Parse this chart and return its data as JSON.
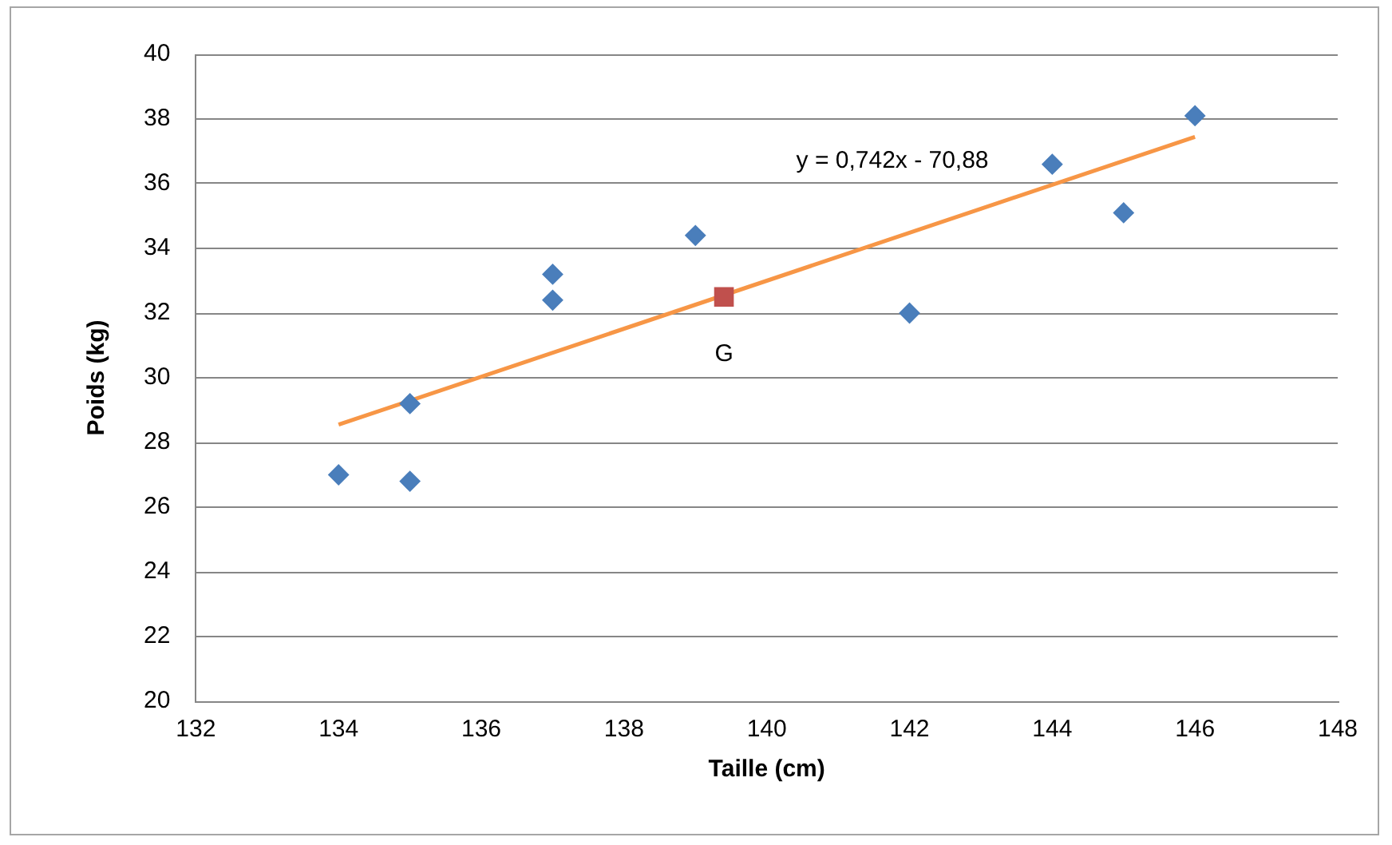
{
  "chart_data": {
    "type": "scatter",
    "xlabel": "Taille (cm)",
    "ylabel": "Poids (kg)",
    "xlim": [
      132,
      148
    ],
    "xticks": [
      132,
      134,
      136,
      138,
      140,
      142,
      144,
      146,
      148
    ],
    "ylim": [
      20,
      40
    ],
    "yticks": [
      20,
      22,
      24,
      26,
      28,
      30,
      32,
      34,
      36,
      38,
      40
    ],
    "grid": "y",
    "legend": false,
    "series": [
      {
        "type": "scatter",
        "color": "#4a7ebb",
        "marker": "diamond",
        "x": [
          134,
          135,
          135,
          137,
          137,
          139,
          142,
          144,
          145,
          146
        ],
        "values": [
          27.0,
          29.2,
          26.8,
          33.2,
          32.4,
          34.4,
          32.0,
          36.6,
          35.1,
          38.1
        ]
      },
      {
        "type": "line",
        "color": "#f79646",
        "marker": "none",
        "x": [
          134,
          146
        ],
        "values": [
          28.55,
          37.45
        ]
      },
      {
        "type": "scatter",
        "name": "G",
        "color": "#c0504d",
        "marker": "square",
        "x": [
          139.4
        ],
        "values": [
          32.5
        ]
      }
    ],
    "annotations": [
      "y = 0,742x - 70,88"
    ]
  }
}
